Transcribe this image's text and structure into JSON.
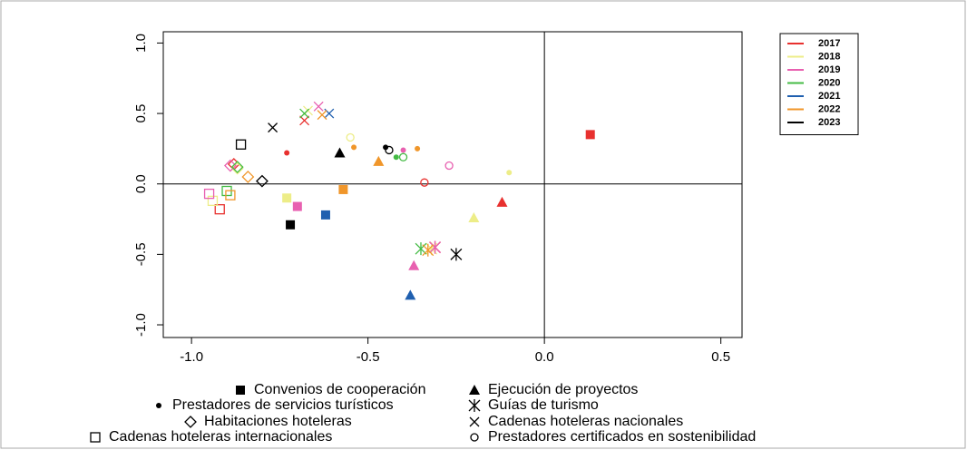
{
  "chart_data": {
    "type": "scatter",
    "xlim": [
      -1.08,
      0.56
    ],
    "ylim": [
      -1.09,
      1.08
    ],
    "xticks": [
      {
        "value": -1,
        "label": "-1.0"
      },
      {
        "value": -0.5,
        "label": "-0.5"
      },
      {
        "value": 0,
        "label": "0.0"
      },
      {
        "value": 0.5,
        "label": "0.5"
      }
    ],
    "yticks": [
      {
        "value": -1,
        "label": "-1.0"
      },
      {
        "value": -0.5,
        "label": "-0.5"
      },
      {
        "value": 0,
        "label": "0.0"
      },
      {
        "value": 0.5,
        "label": "0.5"
      },
      {
        "value": 1,
        "label": "1.0"
      }
    ],
    "reference_lines": {
      "x": 0,
      "y": 0
    },
    "legend": "top-right",
    "series": [
      {
        "name": "2017",
        "color": "#e8312f",
        "markers": [
          "square-filled",
          "triangle-filled",
          "circle-filled",
          "square-open",
          "diamond-open",
          "x",
          "asterisk",
          "circle-open"
        ],
        "x": [
          0.13,
          -0.12,
          -0.73,
          -0.92,
          -0.88,
          -0.68,
          -0.31,
          -0.34
        ],
        "y": [
          0.35,
          -0.13,
          0.22,
          -0.18,
          0.14,
          0.45,
          -0.45,
          0.01
        ]
      },
      {
        "name": "2018",
        "color": "#eded88",
        "markers": [
          "square-filled",
          "triangle-filled",
          "circle-filled",
          "square-open",
          "diamond-open",
          "x",
          "asterisk",
          "circle-open"
        ],
        "x": [
          -0.73,
          -0.2,
          -0.1,
          -0.94,
          -0.87,
          -0.67,
          -0.32,
          -0.55
        ],
        "y": [
          -0.1,
          -0.24,
          0.08,
          -0.12,
          0.11,
          0.52,
          -0.46,
          0.33
        ]
      },
      {
        "name": "2019",
        "color": "#e860b0",
        "markers": [
          "square-filled",
          "triangle-filled",
          "circle-filled",
          "square-open",
          "diamond-open",
          "x",
          "asterisk",
          "circle-open"
        ],
        "x": [
          -0.7,
          -0.37,
          -0.4,
          -0.95,
          -0.89,
          -0.64,
          -0.31,
          -0.27
        ],
        "y": [
          -0.16,
          -0.58,
          0.24,
          -0.07,
          0.13,
          0.55,
          -0.45,
          0.13
        ]
      },
      {
        "name": "2020",
        "color": "#44bb44",
        "markers": [
          "circle-filled",
          "circle-open",
          "square-open",
          "diamond-open",
          "x",
          "asterisk"
        ],
        "x": [
          -0.42,
          -0.4,
          -0.9,
          -0.87,
          -0.68,
          -0.35
        ],
        "y": [
          0.19,
          0.19,
          -0.05,
          0.12,
          0.5,
          -0.46
        ]
      },
      {
        "name": "2021",
        "color": "#1f5faf",
        "markers": [
          "square-filled",
          "triangle-filled",
          "x"
        ],
        "x": [
          -0.62,
          -0.38,
          -0.61
        ],
        "y": [
          -0.22,
          -0.79,
          0.5
        ]
      },
      {
        "name": "2022",
        "color": "#f0962a",
        "markers": [
          "square-filled",
          "triangle-filled",
          "circle-filled",
          "circle-filled",
          "square-open",
          "diamond-open",
          "x",
          "asterisk"
        ],
        "x": [
          -0.57,
          -0.47,
          -0.36,
          -0.54,
          -0.89,
          -0.84,
          -0.63,
          -0.33
        ],
        "y": [
          -0.04,
          0.16,
          0.25,
          0.26,
          -0.08,
          0.05,
          0.49,
          -0.47
        ]
      },
      {
        "name": "2023",
        "color": "#000000",
        "markers": [
          "square-filled",
          "triangle-filled",
          "circle-filled",
          "circle-open",
          "square-open",
          "diamond-open",
          "x",
          "asterisk"
        ],
        "x": [
          -0.72,
          -0.58,
          -0.45,
          -0.44,
          -0.86,
          -0.8,
          -0.77,
          -0.25
        ],
        "y": [
          -0.29,
          0.22,
          0.26,
          0.24,
          0.28,
          0.02,
          0.4,
          -0.5
        ]
      }
    ],
    "marker_legend": [
      {
        "label": "Convenios de cooperación",
        "marker": "square-filled"
      },
      {
        "label": "Prestadores de servicios turísticos",
        "marker": "circle-filled"
      },
      {
        "label": "Habitaciones hoteleras",
        "marker": "diamond-open"
      },
      {
        "label": "Cadenas hoteleras internacionales",
        "marker": "square-open"
      },
      {
        "label": "Ejecución de proyectos",
        "marker": "triangle-filled"
      },
      {
        "label": "Guías de turismo",
        "marker": "asterisk"
      },
      {
        "label": "Cadenas hoteleras nacionales",
        "marker": "x"
      },
      {
        "label": "Prestadores certificados en sostenibilidad",
        "marker": "circle-open"
      }
    ]
  }
}
